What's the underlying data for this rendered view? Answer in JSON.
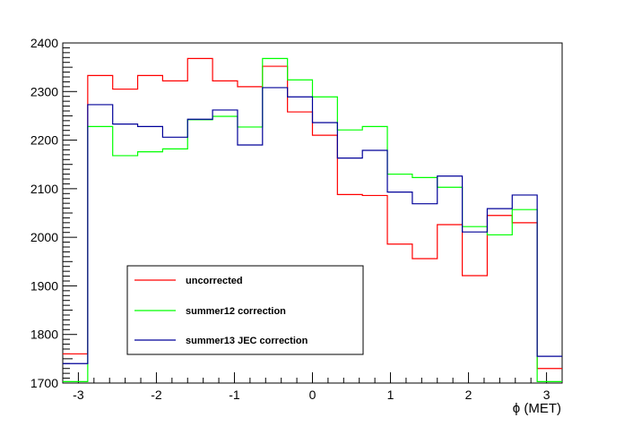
{
  "chart_data": {
    "type": "line",
    "style": "step-histogram",
    "title": "",
    "xlabel": "ϕ (MET)",
    "ylabel": "",
    "xlim": [
      -3.2,
      3.2
    ],
    "ylim": [
      1700,
      2400
    ],
    "x_ticks": [
      -3,
      -2,
      -1,
      0,
      1,
      2,
      3
    ],
    "y_ticks": [
      1700,
      1800,
      1900,
      2000,
      2100,
      2200,
      2300,
      2400
    ],
    "bin_edges": [
      -3.2,
      -2.88,
      -2.56,
      -2.24,
      -1.92,
      -1.6,
      -1.28,
      -0.96,
      -0.64,
      -0.32,
      0.0,
      0.32,
      0.64,
      0.96,
      1.28,
      1.6,
      1.92,
      2.24,
      2.56,
      2.88,
      3.2
    ],
    "legend_position": "bottom-left",
    "grid": false,
    "series": [
      {
        "name": "uncorrected",
        "color": "#ff0000",
        "values": [
          1760,
          2333,
          2305,
          2333,
          2322,
          2368,
          2322,
          2310,
          2352,
          2258,
          2210,
          2088,
          2086,
          1986,
          1956,
          2026,
          1921,
          2045,
          2030,
          1730
        ]
      },
      {
        "name": "summer12 correction",
        "color": "#00ff00",
        "values": [
          1703,
          2228,
          2168,
          2176,
          2182,
          2242,
          2249,
          2227,
          2368,
          2324,
          2289,
          2221,
          2228,
          2130,
          2123,
          2103,
          2022,
          2005,
          2057,
          1703
        ]
      },
      {
        "name": "summer13 JEC correction",
        "color": "#000099",
        "values": [
          1740,
          2273,
          2233,
          2228,
          2206,
          2243,
          2262,
          2190,
          2308,
          2289,
          2236,
          2163,
          2179,
          2093,
          2069,
          2126,
          2011,
          2059,
          2087,
          1755
        ]
      }
    ]
  }
}
